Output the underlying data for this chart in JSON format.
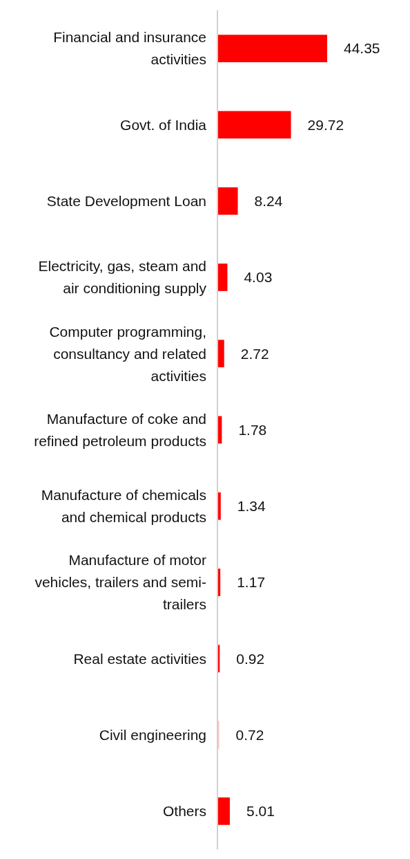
{
  "chart_data": {
    "type": "bar",
    "orientation": "horizontal",
    "data_labels": true,
    "categories": [
      "Financial and insurance activities",
      "Govt. of India",
      "State Development Loan",
      "Electricity, gas, steam and air conditioning supply",
      "Computer programming, consultancy and related activities",
      "Manufacture of coke and refined petroleum products",
      "Manufacture of chemicals and chemical products",
      "Manufacture of motor vehicles, trailers and semi-trailers",
      "Real estate activities",
      "Civil engineering",
      "Others"
    ],
    "values": [
      44.35,
      29.72,
      8.24,
      4.03,
      2.72,
      1.78,
      1.34,
      1.17,
      0.92,
      0.72,
      5.01
    ],
    "colors": [
      "#ff0000",
      "#ff0000",
      "#ff0000",
      "#ff0000",
      "#ff0000",
      "#ff0000",
      "#ff0000",
      "#ff0000",
      "#ff0000",
      "#ffc8c8",
      "#ff0000"
    ]
  }
}
